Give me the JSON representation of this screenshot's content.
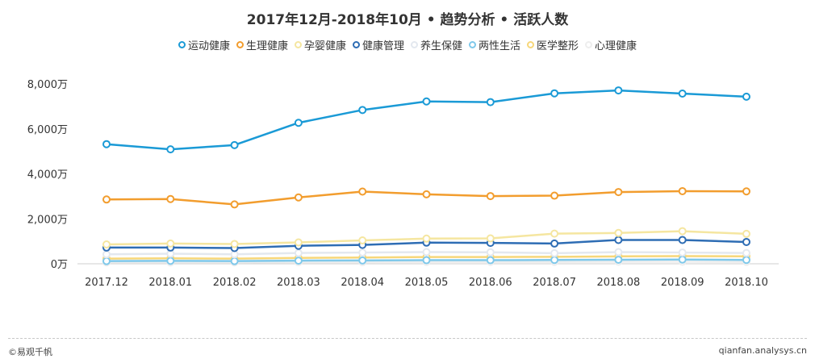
{
  "chart_data": {
    "type": "line",
    "title": "2017年12月-2018年10月 • 趋势分析 • 活跃人数",
    "xlabel": "",
    "ylabel": "",
    "ylim": [
      0,
      8000
    ],
    "yticks": [
      0,
      2000,
      4000,
      6000,
      8000
    ],
    "ytick_labels": [
      "0万",
      "2,000万",
      "4,000万",
      "6,000万",
      "8,000万"
    ],
    "categories": [
      "2017.12",
      "2018.01",
      "2018.02",
      "2018.03",
      "2018.04",
      "2018.05",
      "2018.06",
      "2018.07",
      "2018.08",
      "2018.09",
      "2018.10"
    ],
    "legend_position": "top",
    "series": [
      {
        "name": "运动健康",
        "color": "#1a9ad6",
        "values": [
          5320,
          5090,
          5280,
          6270,
          6840,
          7220,
          7190,
          7580,
          7710,
          7570,
          7430
        ]
      },
      {
        "name": "生理健康",
        "color": "#f29d2e",
        "values": [
          2860,
          2880,
          2640,
          2950,
          3210,
          3090,
          3010,
          3030,
          3190,
          3230,
          3220
        ]
      },
      {
        "name": "孕婴健康",
        "color": "#f5e6a0",
        "values": [
          860,
          900,
          880,
          950,
          1040,
          1120,
          1130,
          1340,
          1370,
          1450,
          1330
        ]
      },
      {
        "name": "健康管理",
        "color": "#2e6db4",
        "values": [
          720,
          720,
          700,
          800,
          840,
          940,
          930,
          900,
          1060,
          1060,
          970
        ]
      },
      {
        "name": "养生保健",
        "color": "#e3e8ef",
        "values": [
          420,
          450,
          420,
          480,
          500,
          520,
          510,
          470,
          520,
          500,
          480
        ]
      },
      {
        "name": "两性生活",
        "color": "#7fc8ea",
        "values": [
          120,
          130,
          120,
          140,
          150,
          160,
          160,
          170,
          180,
          190,
          170
        ]
      },
      {
        "name": "医学整形",
        "color": "#f7d77a",
        "values": [
          230,
          240,
          230,
          260,
          280,
          300,
          300,
          310,
          330,
          340,
          330
        ]
      },
      {
        "name": "心理健康",
        "color": "#eeeeee",
        "values": [
          60,
          60,
          60,
          70,
          70,
          80,
          80,
          80,
          90,
          90,
          80
        ]
      }
    ]
  },
  "footer": {
    "brand": "©易观千帆",
    "url": "qianfan.analysys.cn"
  }
}
